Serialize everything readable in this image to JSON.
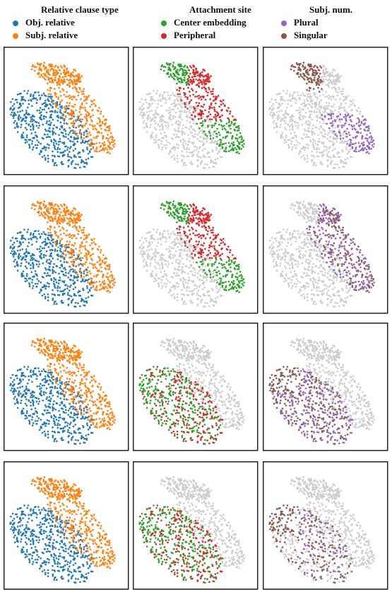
{
  "legends": [
    {
      "title": "Relative clause type",
      "entries": [
        {
          "label": "Obj. relative",
          "color": "#1f77b4"
        },
        {
          "label": "Subj. relative",
          "color": "#ff7f0e"
        }
      ]
    },
    {
      "title": "Attachment site",
      "entries": [
        {
          "label": "Center embedding",
          "color": "#2ca02c"
        },
        {
          "label": "Peripheral",
          "color": "#d62728"
        }
      ]
    },
    {
      "title": "Subj. num.",
      "entries": [
        {
          "label": "Plural",
          "color": "#9467bd"
        },
        {
          "label": "Singular",
          "color": "#8c564b"
        }
      ]
    }
  ]
}
